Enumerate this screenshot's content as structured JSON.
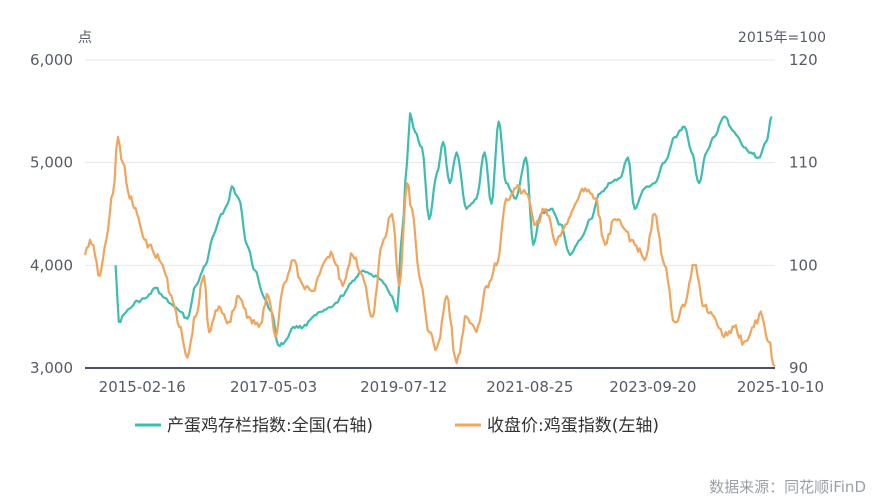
{
  "chart_data": {
    "type": "line",
    "left_axis": {
      "unit": "点",
      "ylim": [
        3000,
        6000
      ],
      "ticks": [
        3000,
        4000,
        5000,
        6000
      ],
      "tick_labels": [
        "3,000",
        "4,000",
        "5,000",
        "6,000"
      ]
    },
    "right_axis": {
      "unit": "2015年=100",
      "ylim": [
        90,
        120
      ],
      "ticks": [
        90,
        100,
        110,
        120
      ],
      "tick_labels": [
        "90",
        "100",
        "110",
        "120"
      ]
    },
    "x_axis": {
      "range": [
        "2014-03-01",
        "2025-10-10"
      ],
      "ticks": [
        "2015-02-16",
        "2017-05-03",
        "2019-07-12",
        "2021-08-25",
        "2023-09-20",
        "2025-10-10"
      ]
    },
    "grid": true,
    "legend_position": "bottom",
    "series": [
      {
        "name": "产蛋鸡存栏指数:全国(右轴)",
        "axis": "right",
        "color": "#3dbcb0",
        "points": [
          [
            "2014-09-05",
            100.0
          ],
          [
            "2014-09-25",
            94.5
          ],
          [
            "2014-11-15",
            95.6
          ],
          [
            "2015-01-20",
            96.5
          ],
          [
            "2015-03-10",
            96.8
          ],
          [
            "2015-05-10",
            97.8
          ],
          [
            "2015-06-20",
            97.0
          ],
          [
            "2015-08-15",
            96.2
          ],
          [
            "2015-10-05",
            95.5
          ],
          [
            "2015-11-20",
            94.8
          ],
          [
            "2016-01-10",
            98.0
          ],
          [
            "2016-03-10",
            100.0
          ],
          [
            "2016-05-01",
            103.0
          ],
          [
            "2016-06-15",
            105.0
          ],
          [
            "2016-07-25",
            106.0
          ],
          [
            "2016-08-20",
            107.7
          ],
          [
            "2016-10-01",
            106.5
          ],
          [
            "2016-11-20",
            102.0
          ],
          [
            "2017-01-10",
            99.5
          ],
          [
            "2017-03-01",
            97.0
          ],
          [
            "2017-04-20",
            95.5
          ],
          [
            "2017-06-01",
            92.2
          ],
          [
            "2017-07-10",
            92.5
          ],
          [
            "2017-09-01",
            94.0
          ],
          [
            "2017-11-01",
            94.0
          ],
          [
            "2018-01-01",
            95.0
          ],
          [
            "2018-03-01",
            95.5
          ],
          [
            "2018-05-01",
            96.0
          ],
          [
            "2018-07-01",
            97.0
          ],
          [
            "2018-09-01",
            98.5
          ],
          [
            "2018-11-01",
            99.5
          ],
          [
            "2019-01-01",
            99.0
          ],
          [
            "2019-03-01",
            98.5
          ],
          [
            "2019-05-01",
            97.0
          ],
          [
            "2019-06-01",
            95.5
          ],
          [
            "2019-07-01",
            103.0
          ],
          [
            "2019-08-01",
            110.0
          ],
          [
            "2019-08-20",
            114.8
          ],
          [
            "2019-09-20",
            113.0
          ],
          [
            "2019-11-01",
            111.5
          ],
          [
            "2019-12-15",
            104.5
          ],
          [
            "2020-02-01",
            109.0
          ],
          [
            "2020-03-10",
            112.0
          ],
          [
            "2020-04-20",
            108.0
          ],
          [
            "2020-06-01",
            111.0
          ],
          [
            "2020-08-01",
            105.5
          ],
          [
            "2020-10-01",
            106.5
          ],
          [
            "2020-11-20",
            111.0
          ],
          [
            "2021-01-01",
            106.0
          ],
          [
            "2021-02-15",
            114.0
          ],
          [
            "2021-04-01",
            108.0
          ],
          [
            "2021-06-01",
            106.5
          ],
          [
            "2021-08-01",
            110.5
          ],
          [
            "2021-09-15",
            102.0
          ],
          [
            "2021-11-01",
            105.0
          ],
          [
            "2022-01-01",
            105.5
          ],
          [
            "2022-03-01",
            104.0
          ],
          [
            "2022-05-01",
            101.0
          ],
          [
            "2022-07-01",
            102.5
          ],
          [
            "2022-09-01",
            104.5
          ],
          [
            "2022-11-01",
            107.0
          ],
          [
            "2023-01-01",
            108.0
          ],
          [
            "2023-03-01",
            108.5
          ],
          [
            "2023-04-20",
            110.5
          ],
          [
            "2023-06-01",
            105.5
          ],
          [
            "2023-08-01",
            107.5
          ],
          [
            "2023-10-01",
            108.0
          ],
          [
            "2023-12-01",
            110.0
          ],
          [
            "2024-02-01",
            112.5
          ],
          [
            "2024-04-01",
            113.5
          ],
          [
            "2024-05-15",
            111.0
          ],
          [
            "2024-07-01",
            108.0
          ],
          [
            "2024-08-15",
            111.0
          ],
          [
            "2024-10-01",
            112.5
          ],
          [
            "2024-12-01",
            114.5
          ],
          [
            "2025-02-01",
            113.0
          ],
          [
            "2025-04-01",
            111.5
          ],
          [
            "2025-05-15",
            111.0
          ],
          [
            "2025-07-01",
            110.5
          ],
          [
            "2025-08-15",
            112.0
          ],
          [
            "2025-09-20",
            114.5
          ]
        ]
      },
      {
        "name": "收盘价:鸡蛋指数(左轴)",
        "axis": "left",
        "color": "#f0a45c",
        "points": [
          [
            "2014-03-01",
            4100
          ],
          [
            "2014-04-01",
            4250
          ],
          [
            "2014-06-01",
            3900
          ],
          [
            "2014-07-10",
            4250
          ],
          [
            "2014-08-20",
            4700
          ],
          [
            "2014-09-20",
            5250
          ],
          [
            "2014-10-20",
            5000
          ],
          [
            "2014-12-01",
            4650
          ],
          [
            "2015-01-15",
            4500
          ],
          [
            "2015-03-01",
            4250
          ],
          [
            "2015-04-20",
            4150
          ],
          [
            "2015-06-01",
            4050
          ],
          [
            "2015-07-01",
            3950
          ],
          [
            "2015-08-15",
            3700
          ],
          [
            "2015-10-01",
            3400
          ],
          [
            "2015-11-20",
            3100
          ],
          [
            "2016-01-10",
            3500
          ],
          [
            "2016-03-01",
            3900
          ],
          [
            "2016-04-01",
            3350
          ],
          [
            "2016-06-01",
            3600
          ],
          [
            "2016-08-01",
            3450
          ],
          [
            "2016-10-01",
            3700
          ],
          [
            "2016-12-01",
            3500
          ],
          [
            "2017-02-01",
            3400
          ],
          [
            "2017-04-01",
            3700
          ],
          [
            "2017-05-15",
            3300
          ],
          [
            "2017-07-01",
            3800
          ],
          [
            "2017-09-01",
            4050
          ],
          [
            "2017-11-01",
            3800
          ],
          [
            "2018-01-01",
            3750
          ],
          [
            "2018-03-01",
            4000
          ],
          [
            "2018-05-01",
            4100
          ],
          [
            "2018-07-01",
            3800
          ],
          [
            "2018-09-01",
            4100
          ],
          [
            "2018-11-01",
            3900
          ],
          [
            "2019-01-01",
            3500
          ],
          [
            "2019-03-01",
            4200
          ],
          [
            "2019-05-01",
            4500
          ],
          [
            "2019-06-15",
            3800
          ],
          [
            "2019-08-01",
            4800
          ],
          [
            "2019-09-01",
            4550
          ],
          [
            "2019-10-15",
            3900
          ],
          [
            "2019-12-15",
            3350
          ],
          [
            "2020-02-01",
            3200
          ],
          [
            "2020-04-01",
            3700
          ],
          [
            "2020-06-01",
            3050
          ],
          [
            "2020-08-01",
            3500
          ],
          [
            "2020-10-01",
            3350
          ],
          [
            "2020-12-01",
            3800
          ],
          [
            "2021-02-01",
            4000
          ],
          [
            "2021-04-01",
            4650
          ],
          [
            "2021-06-01",
            4750
          ],
          [
            "2021-08-01",
            4700
          ],
          [
            "2021-10-01",
            4400
          ],
          [
            "2021-12-01",
            4550
          ],
          [
            "2022-02-01",
            4200
          ],
          [
            "2022-04-01",
            4400
          ],
          [
            "2022-06-01",
            4600
          ],
          [
            "2022-08-01",
            4750
          ],
          [
            "2022-10-01",
            4650
          ],
          [
            "2022-12-01",
            4200
          ],
          [
            "2023-02-01",
            4450
          ],
          [
            "2023-04-01",
            4350
          ],
          [
            "2023-06-01",
            4200
          ],
          [
            "2023-08-01",
            4050
          ],
          [
            "2023-10-01",
            4500
          ],
          [
            "2023-12-01",
            4000
          ],
          [
            "2024-02-01",
            3450
          ],
          [
            "2024-04-01",
            3600
          ],
          [
            "2024-06-01",
            4000
          ],
          [
            "2024-08-01",
            3600
          ],
          [
            "2024-10-01",
            3500
          ],
          [
            "2024-12-01",
            3300
          ],
          [
            "2025-02-01",
            3400
          ],
          [
            "2025-04-01",
            3250
          ],
          [
            "2025-06-01",
            3400
          ],
          [
            "2025-07-15",
            3550
          ],
          [
            "2025-09-01",
            3250
          ],
          [
            "2025-10-10",
            3020
          ]
        ]
      }
    ]
  },
  "source": "数据来源：同花顺iFinD"
}
